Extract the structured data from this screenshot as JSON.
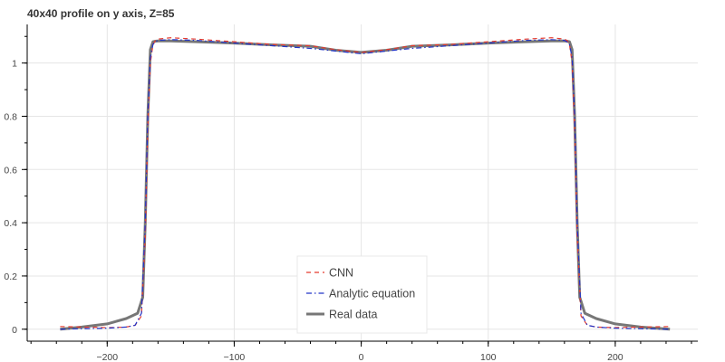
{
  "chart_data": {
    "type": "line",
    "title": "40x40 profile on y axis, Z=85",
    "xlabel": "",
    "ylabel": "",
    "xlim": [
      -263,
      265
    ],
    "ylim": [
      -0.045,
      1.145
    ],
    "grid": true,
    "x_ticks": [
      -200,
      -100,
      0,
      100,
      200
    ],
    "y_ticks": [
      0,
      0.2,
      0.4,
      0.6,
      0.8,
      1
    ],
    "x_tick_labels": [
      "−200",
      "−100",
      "0",
      "100",
      "200"
    ],
    "y_tick_labels": [
      "0",
      "0.2",
      "0.4",
      "0.6",
      "0.8",
      "1"
    ],
    "legend_position": "bottom-center",
    "series": [
      {
        "name": "CNN",
        "color": "#e53a2e",
        "dash": "dashed",
        "x": [
          -237,
          -220,
          -200,
          -185,
          -178,
          -173,
          -170,
          -168,
          -166,
          -164,
          -162,
          -160,
          -150,
          -130,
          -100,
          -70,
          -40,
          -20,
          0,
          20,
          40,
          70,
          100,
          130,
          150,
          160,
          162,
          164,
          166,
          168,
          170,
          173,
          178,
          185,
          200,
          220,
          243
        ],
        "y": [
          0.01,
          0.008,
          0.006,
          0.008,
          0.015,
          0.05,
          0.35,
          0.75,
          1.0,
          1.07,
          1.085,
          1.09,
          1.095,
          1.09,
          1.08,
          1.07,
          1.065,
          1.05,
          1.04,
          1.05,
          1.065,
          1.07,
          1.08,
          1.09,
          1.095,
          1.09,
          1.085,
          1.07,
          1.0,
          0.75,
          0.35,
          0.05,
          0.015,
          0.008,
          0.006,
          0.008,
          0.01
        ]
      },
      {
        "name": "Analytic equation",
        "color": "#2234c8",
        "dash": "dashdot",
        "x": [
          -237,
          -220,
          -200,
          -185,
          -178,
          -173,
          -170,
          -168,
          -166,
          -164,
          -162,
          -160,
          -150,
          -130,
          -100,
          -70,
          -40,
          -20,
          0,
          20,
          40,
          70,
          100,
          130,
          150,
          160,
          162,
          164,
          166,
          168,
          170,
          173,
          178,
          185,
          200,
          220,
          243
        ],
        "y": [
          0.0,
          0.002,
          0.004,
          0.008,
          0.015,
          0.06,
          0.4,
          0.8,
          1.02,
          1.07,
          1.08,
          1.085,
          1.088,
          1.085,
          1.075,
          1.065,
          1.055,
          1.045,
          1.035,
          1.045,
          1.055,
          1.065,
          1.075,
          1.085,
          1.088,
          1.085,
          1.08,
          1.07,
          1.02,
          0.8,
          0.4,
          0.06,
          0.015,
          0.008,
          0.004,
          0.002,
          0.0
        ]
      },
      {
        "name": "Real data",
        "color": "#777777",
        "dash": "solid",
        "x": [
          -237,
          -220,
          -200,
          -185,
          -176,
          -172,
          -170,
          -168,
          -166,
          -164,
          -162,
          -160,
          -150,
          -130,
          -100,
          -70,
          -40,
          -20,
          0,
          20,
          40,
          70,
          100,
          130,
          150,
          160,
          162,
          164,
          166,
          168,
          170,
          172,
          176,
          185,
          200,
          220,
          243
        ],
        "y": [
          0.0,
          0.008,
          0.02,
          0.04,
          0.06,
          0.12,
          0.4,
          0.8,
          1.05,
          1.08,
          1.082,
          1.083,
          1.083,
          1.08,
          1.075,
          1.068,
          1.063,
          1.048,
          1.04,
          1.048,
          1.063,
          1.068,
          1.075,
          1.08,
          1.083,
          1.083,
          1.082,
          1.08,
          1.05,
          0.8,
          0.4,
          0.12,
          0.06,
          0.04,
          0.02,
          0.008,
          0.0
        ]
      }
    ]
  }
}
